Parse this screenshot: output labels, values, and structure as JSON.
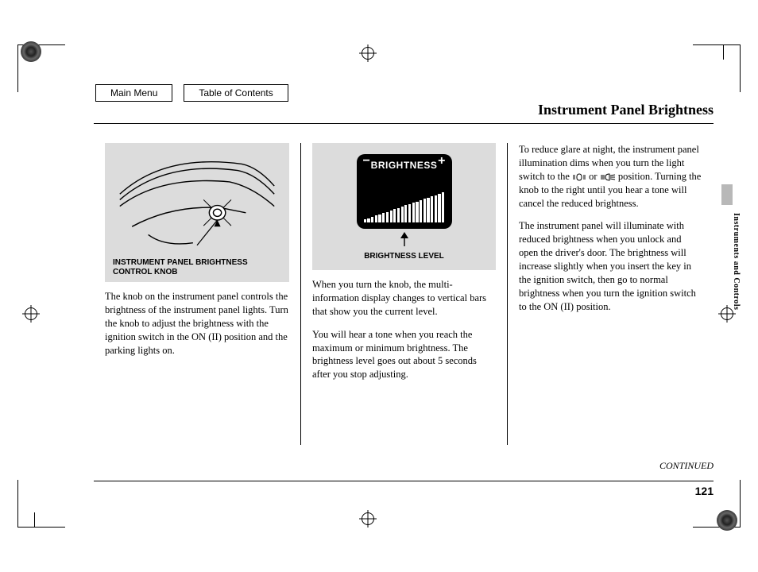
{
  "nav": {
    "main_menu": "Main Menu",
    "toc": "Table of Contents"
  },
  "title": "Instrument Panel Brightness",
  "side_label": "Instruments and Controls",
  "continued": "CONTINUED",
  "page_number": "121",
  "figure1": {
    "caption": "INSTRUMENT PANEL BRIGHTNESS CONTROL KNOB",
    "type": "line-drawing-diagram",
    "background": "#dcdcdc",
    "stroke": "#000000"
  },
  "figure2": {
    "box_title": "BRIGHTNESS",
    "caption": "BRIGHTNESS LEVEL",
    "box_bg": "#000000",
    "box_fg": "#ffffff",
    "bar_count": 22,
    "bar_min_h": 4,
    "bar_max_h": 38,
    "minus": "−",
    "plus": "+"
  },
  "col1": {
    "p1": "The knob on the instrument panel controls the brightness of the instrument panel lights. Turn the knob to adjust the brightness with the ignition switch in the ON (II) position and the parking lights on."
  },
  "col2": {
    "p1": "When you turn the knob, the multi-information display changes to vertical bars that show you the current level.",
    "p2": "You will hear a tone when you reach the maximum or minimum brightness. The brightness level goes out about 5 seconds after you stop adjusting."
  },
  "col3": {
    "p1a": "To reduce glare at night, the instrument panel illumination dims when you turn the light switch to the ",
    "p1b": " or ",
    "p1c": " position. Turning the knob to the right until you hear a tone will cancel the reduced brightness.",
    "p2": "The instrument panel will illuminate with reduced brightness when you unlock and open the driver's door. The brightness will increase slightly when you insert the key in the ignition switch, then go to normal brightness when you turn the ignition switch to the ON (II) position."
  },
  "colors": {
    "page_bg": "#ffffff",
    "figure_bg": "#dcdcdc",
    "text": "#000000",
    "tab": "#b8b8b8"
  },
  "typography": {
    "title_family": "Georgia, serif",
    "title_size_pt": 18,
    "body_family": "Georgia, serif",
    "body_size_pt": 12.5,
    "caption_family": "Arial, sans-serif",
    "caption_size_pt": 10
  }
}
